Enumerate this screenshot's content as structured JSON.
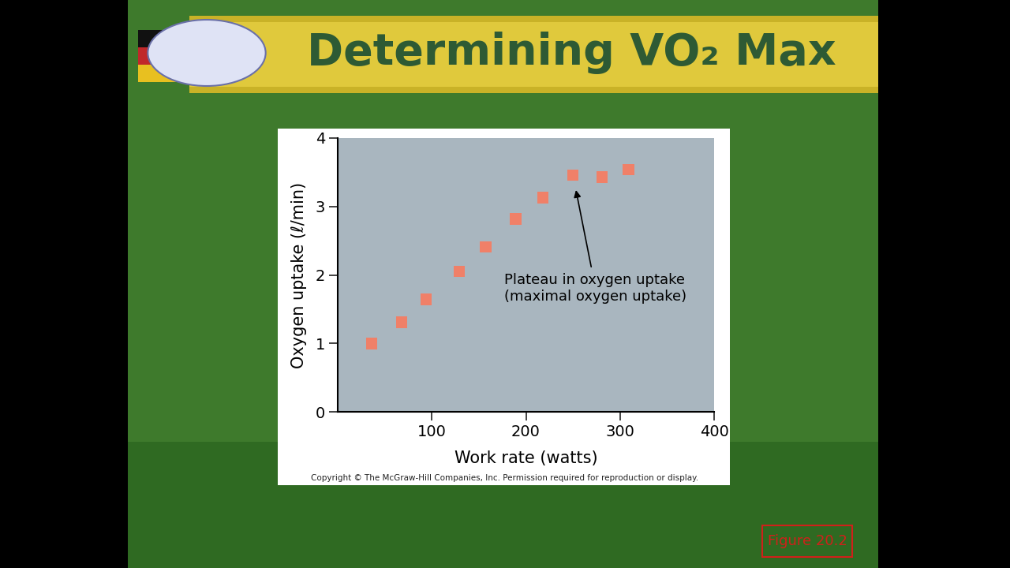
{
  "chart_data": {
    "type": "scatter",
    "title": "Determining VO₂ Max",
    "x_label": "Work rate (watts)",
    "y_label": "Oxygen uptake (ℓ/min)",
    "x": [
      36,
      68,
      94,
      129,
      157,
      189,
      218,
      250,
      281,
      309
    ],
    "values": [
      1.0,
      1.31,
      1.64,
      2.05,
      2.41,
      2.82,
      3.13,
      3.46,
      3.43,
      3.54
    ],
    "color": "#f08068",
    "marker": "square",
    "xlim": [
      0,
      400
    ],
    "ylim": [
      0,
      4
    ],
    "xticks": [
      100,
      200,
      300,
      400
    ],
    "yticks": [
      0,
      1,
      2,
      3,
      4
    ],
    "grid": false,
    "annotations": [
      {
        "text": "Plateau in oxygen uptake\n(maximal oxygen uptake)",
        "x": 250,
        "y": 3.46
      }
    ],
    "note": "Copyright © The McGraw-Hill Companies, Inc. Permission required for reproduction or display.",
    "figure_label": "Figure 20.2"
  }
}
